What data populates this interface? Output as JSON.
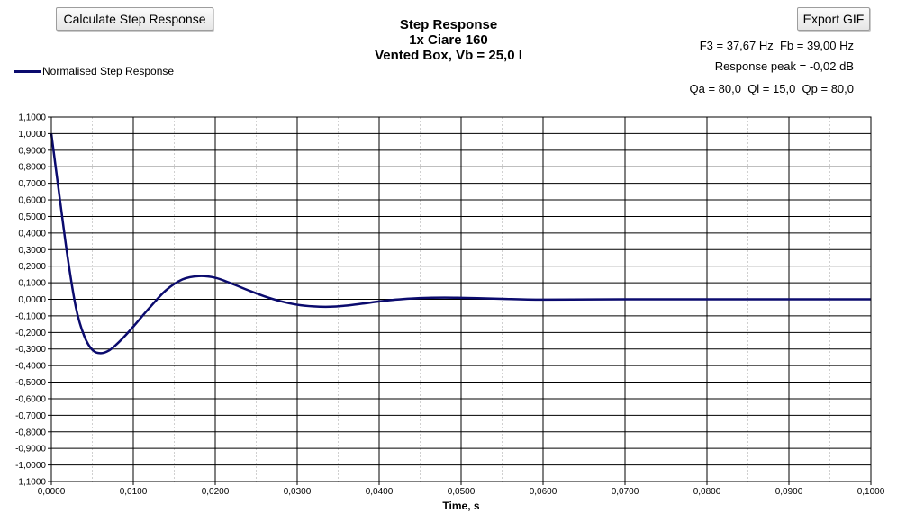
{
  "toolbar": {
    "calculate_label": "Calculate Step Response",
    "export_label": "Export GIF"
  },
  "header": {
    "title_line1": "Step Response",
    "title_line2": "1x Ciare 160",
    "title_line3": "Vented Box, Vb = 25,0 l"
  },
  "info": {
    "line1": "F3 = 37,67 Hz  Fb = 39,00 Hz",
    "line2": "Response peak = -0,02 dB",
    "line3": "Qa = 80,0  Ql = 15,0  Qp = 80,0"
  },
  "colors": {
    "series": "#0b0b6e",
    "grid_major": "#000000",
    "grid_minor": "#d0d0d0",
    "background": "#ffffff"
  },
  "chart_data": {
    "type": "line",
    "title": "Step Response",
    "xlabel": "Time, s",
    "ylabel": "",
    "xlim": [
      0,
      0.1
    ],
    "ylim": [
      -1.1,
      1.1
    ],
    "grid": true,
    "legend_position": "top-left",
    "x_ticks": [
      "0,0000",
      "0,0100",
      "0,0200",
      "0,0300",
      "0,0400",
      "0,0500",
      "0,0600",
      "0,0700",
      "0,0800",
      "0,0900",
      "0,1000"
    ],
    "y_ticks": [
      "1,1000",
      "1,0000",
      "0,9000",
      "0,8000",
      "0,7000",
      "0,6000",
      "0,5000",
      "0,4000",
      "0,3000",
      "0,2000",
      "0,1000",
      "0,0000",
      "-0,1000",
      "-0,2000",
      "-0,3000",
      "-0,4000",
      "-0,5000",
      "-0,6000",
      "-0,7000",
      "-0,8000",
      "-0,9000",
      "-1,0000",
      "-1,1000"
    ],
    "series": [
      {
        "name": "Normalised Step Response",
        "x": [
          0,
          0.001,
          0.002,
          0.003,
          0.004,
          0.005,
          0.006,
          0.007,
          0.008,
          0.009,
          0.01,
          0.012,
          0.014,
          0.016,
          0.018,
          0.02,
          0.022,
          0.024,
          0.026,
          0.028,
          0.03,
          0.032,
          0.034,
          0.036,
          0.038,
          0.04,
          0.042,
          0.044,
          0.046,
          0.048,
          0.05,
          0.052,
          0.055,
          0.06,
          0.07,
          0.08,
          0.09,
          0.1
        ],
        "y": [
          1.0,
          0.62,
          0.25,
          -0.05,
          -0.22,
          -0.305,
          -0.325,
          -0.31,
          -0.27,
          -0.22,
          -0.165,
          -0.05,
          0.055,
          0.12,
          0.14,
          0.13,
          0.095,
          0.055,
          0.018,
          -0.012,
          -0.033,
          -0.043,
          -0.045,
          -0.038,
          -0.026,
          -0.013,
          -0.002,
          0.005,
          0.009,
          0.01,
          0.009,
          0.007,
          0.003,
          -0.002,
          0.0,
          0.0,
          0.0,
          0.0
        ]
      }
    ]
  }
}
